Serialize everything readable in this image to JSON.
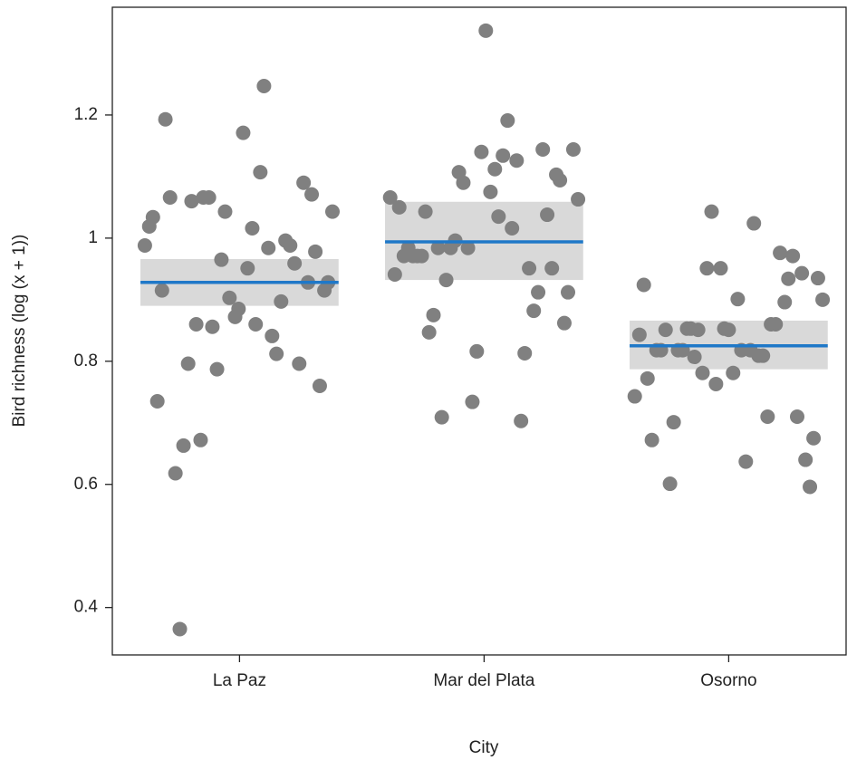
{
  "chart_data": {
    "type": "strip",
    "x_label": "City",
    "y_label": "Bird richness (log (x + 1))",
    "xlim": [
      0.48,
      3.48
    ],
    "xticks": [
      {
        "value": 1,
        "label": "La Paz"
      },
      {
        "value": 2,
        "label": "Mar del Plata"
      },
      {
        "value": 3,
        "label": "Osorno"
      }
    ],
    "ylim": [
      0.323,
      1.375
    ],
    "yticks": [
      0.4,
      0.6,
      0.8,
      1.0,
      1.2
    ],
    "point_color": "#808080",
    "mean_color": "#1f78c8",
    "band_color": "#d9d9d9",
    "series": [
      {
        "mean": 0.928,
        "ci": [
          0.89,
          0.966
        ],
        "x": [
          0.613,
          0.631,
          0.646,
          0.664,
          0.683,
          0.697,
          0.716,
          0.738,
          0.756,
          0.771,
          0.79,
          0.804,
          0.823,
          0.841,
          0.852,
          0.875,
          0.889,
          0.908,
          0.926,
          0.941,
          0.959,
          0.982,
          0.996,
          1.015,
          1.033,
          1.052,
          1.066,
          1.085,
          1.1,
          1.118,
          1.133,
          1.151,
          1.17,
          1.188,
          1.207,
          1.225,
          1.244,
          1.262,
          1.28,
          1.295,
          1.31,
          1.328,
          1.347,
          1.362,
          1.38
        ],
        "values": [
          0.988,
          1.019,
          1.034,
          0.735,
          0.915,
          1.193,
          1.066,
          0.618,
          0.365,
          0.663,
          0.796,
          1.06,
          0.86,
          0.672,
          1.066,
          1.066,
          0.856,
          0.787,
          0.965,
          1.043,
          0.903,
          0.872,
          0.885,
          1.171,
          0.951,
          1.016,
          0.86,
          1.107,
          1.247,
          0.984,
          0.841,
          0.812,
          0.897,
          0.996,
          0.988,
          0.959,
          0.796,
          1.09,
          0.928,
          1.071,
          0.978,
          0.76,
          0.915,
          0.928,
          1.043
        ]
      },
      {
        "mean": 0.994,
        "ci": [
          0.932,
          1.059
        ],
        "x": [
          1.616,
          1.635,
          1.653,
          1.672,
          1.69,
          1.709,
          1.727,
          1.745,
          1.76,
          1.775,
          1.793,
          1.812,
          1.827,
          1.845,
          1.863,
          1.882,
          1.897,
          1.915,
          1.934,
          1.952,
          1.97,
          1.989,
          2.007,
          2.026,
          2.044,
          2.059,
          2.077,
          2.096,
          2.114,
          2.133,
          2.151,
          2.166,
          2.184,
          2.203,
          2.221,
          2.24,
          2.258,
          2.277,
          2.295,
          2.31,
          2.328,
          2.343,
          2.365,
          2.384
        ],
        "values": [
          1.066,
          0.941,
          1.05,
          0.971,
          0.984,
          0.971,
          0.971,
          0.971,
          1.043,
          0.847,
          0.875,
          0.984,
          0.709,
          0.932,
          0.984,
          0.996,
          1.107,
          1.09,
          0.984,
          0.734,
          0.816,
          1.14,
          1.337,
          1.075,
          1.112,
          1.035,
          1.134,
          1.191,
          1.016,
          1.126,
          0.703,
          0.813,
          0.951,
          0.882,
          0.912,
          1.144,
          1.038,
          0.951,
          1.103,
          1.094,
          0.862,
          0.912,
          1.144,
          1.063
        ]
      },
      {
        "mean": 0.825,
        "ci": [
          0.787,
          0.866
        ],
        "x": [
          2.616,
          2.635,
          2.653,
          2.668,
          2.686,
          2.705,
          2.723,
          2.742,
          2.76,
          2.775,
          2.793,
          2.812,
          2.83,
          2.845,
          2.86,
          2.875,
          2.893,
          2.911,
          2.93,
          2.948,
          2.967,
          2.982,
          3.0,
          3.018,
          3.037,
          3.052,
          3.07,
          3.089,
          3.103,
          3.122,
          3.14,
          3.159,
          3.173,
          3.192,
          3.21,
          3.229,
          3.244,
          3.262,
          3.28,
          3.299,
          3.314,
          3.332,
          3.347,
          3.365,
          3.384
        ],
        "values": [
          0.743,
          0.843,
          0.924,
          0.772,
          0.672,
          0.818,
          0.818,
          0.851,
          0.601,
          0.701,
          0.818,
          0.818,
          0.853,
          0.853,
          0.807,
          0.851,
          0.781,
          0.951,
          1.043,
          0.763,
          0.951,
          0.853,
          0.851,
          0.781,
          0.901,
          0.818,
          0.637,
          0.818,
          1.024,
          0.809,
          0.809,
          0.71,
          0.86,
          0.86,
          0.976,
          0.896,
          0.934,
          0.971,
          0.71,
          0.943,
          0.64,
          0.596,
          0.675,
          0.935,
          0.9
        ]
      }
    ]
  }
}
